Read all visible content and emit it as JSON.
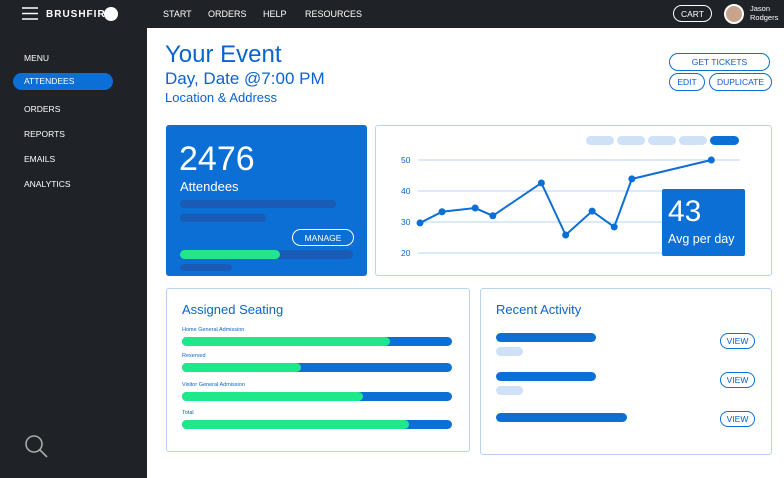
{
  "topbar": {
    "logo": "BRUSHFIRE",
    "nav": [
      "START",
      "ORDERS",
      "HELP",
      "RESOURCES"
    ],
    "cart": "CART",
    "user": [
      "Jason",
      "Rodgers"
    ]
  },
  "sidebar": {
    "items": [
      "MENU",
      "ATTENDEES",
      "ORDERS",
      "REPORTS",
      "EMAILS",
      "ANALYTICS"
    ],
    "active": 1
  },
  "event": {
    "title": "Your Event",
    "datetime": "Day, Date @7:00 PM",
    "location": "Location & Address",
    "buttons": [
      "GET TICKETS",
      "EDIT",
      "DUPLICATE"
    ]
  },
  "attendees": {
    "count": "2476",
    "label": "Attendees",
    "button": "MANAGE",
    "progress": 58
  },
  "line_chart": {
    "type": "line",
    "x": [
      0,
      1,
      2.5,
      3.3,
      5.5,
      6.6,
      7.8,
      8.8,
      9.6,
      13.2
    ],
    "values": [
      29.7,
      33.3,
      34.5,
      32,
      42.6,
      25.8,
      33.5,
      28.4,
      43.9,
      50
    ],
    "xlim": [
      0,
      14.5
    ],
    "ylim": [
      20,
      50
    ],
    "yticks": [
      50,
      40,
      30,
      20
    ],
    "color": "#0b6fd6",
    "grid": true
  },
  "average": {
    "value": "43",
    "label": "Avg per day"
  },
  "seating": {
    "title": "Assigned Seating",
    "items": [
      {
        "label": "Home General Admission",
        "value": 77
      },
      {
        "label": "Reserved",
        "value": 44
      },
      {
        "label": "Visitor General Admission",
        "value": 67
      },
      {
        "label": "Total",
        "value": 84
      }
    ]
  },
  "activity": {
    "title": "Recent Activity",
    "buttons": [
      "VIEW",
      "VIEW",
      "VIEW"
    ]
  }
}
